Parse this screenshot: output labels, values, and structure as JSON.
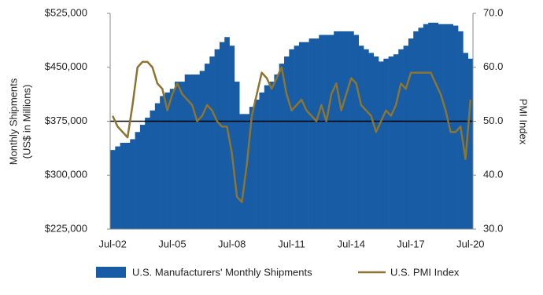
{
  "chart_data": {
    "type": "bar-line",
    "categories": [
      "Jul-02",
      null,
      null,
      null,
      null,
      null,
      null,
      null,
      null,
      null,
      null,
      null,
      "Jul-05",
      null,
      null,
      null,
      null,
      null,
      null,
      null,
      null,
      null,
      null,
      null,
      "Jul-08",
      null,
      null,
      null,
      null,
      null,
      null,
      null,
      null,
      null,
      null,
      null,
      "Jul-11",
      null,
      null,
      null,
      null,
      null,
      null,
      null,
      null,
      null,
      null,
      null,
      "Jul-14",
      null,
      null,
      null,
      null,
      null,
      null,
      null,
      null,
      null,
      null,
      null,
      "Jul-17",
      null,
      null,
      null,
      null,
      null,
      null,
      null,
      null,
      null,
      null,
      null,
      "Jul-20"
    ],
    "series": [
      {
        "name": "U.S. Manufacturers' Monthly Shipments",
        "type": "bar",
        "color": "#175ca4",
        "values": [
          335000,
          340000,
          345000,
          345000,
          350000,
          360000,
          370000,
          380000,
          390000,
          400000,
          410000,
          415000,
          420000,
          430000,
          430000,
          440000,
          440000,
          440000,
          445000,
          455000,
          465000,
          475000,
          485000,
          492000,
          480000,
          430000,
          385000,
          385000,
          395000,
          405000,
          415000,
          425000,
          430000,
          440000,
          455000,
          465000,
          475000,
          480000,
          485000,
          485000,
          490000,
          490000,
          495000,
          495000,
          495000,
          500000,
          500000,
          500000,
          500000,
          495000,
          480000,
          475000,
          470000,
          465000,
          458000,
          462000,
          465000,
          468000,
          475000,
          480000,
          490000,
          500000,
          505000,
          510000,
          512000,
          512000,
          510000,
          510000,
          510000,
          508000,
          500000,
          470000,
          462000
        ]
      },
      {
        "name": "U.S. PMI Index",
        "type": "line",
        "axis": "y2",
        "color": "#8c7431",
        "values": [
          51,
          49,
          48,
          47,
          53,
          60,
          61,
          61,
          60,
          57,
          56,
          52,
          55,
          57,
          55,
          54,
          53,
          50,
          51,
          53,
          52,
          50,
          49,
          49,
          44,
          36,
          35,
          42,
          51,
          55,
          59,
          58,
          56,
          58,
          60,
          55,
          52,
          53,
          54,
          52,
          51,
          50,
          53,
          50,
          55,
          57,
          52,
          55,
          58,
          57,
          53,
          52,
          51,
          48,
          50,
          52,
          51,
          53,
          57,
          56,
          59,
          59,
          59,
          59,
          59,
          57,
          55,
          52,
          48,
          48,
          49,
          43,
          54
        ]
      }
    ],
    "y_label": [
      "Monthly Shipments",
      "(US$ in Millions)"
    ],
    "y2_label": "PMI Index",
    "ylim": [
      225000,
      525000
    ],
    "yticks": [
      {
        "value": 225000,
        "label": "$225,000"
      },
      {
        "value": 300000,
        "label": "$300,000"
      },
      {
        "value": 375000,
        "label": "$375,000"
      },
      {
        "value": 450000,
        "label": "$450,000"
      },
      {
        "value": 525000,
        "label": "$525,000"
      }
    ],
    "y2lim": [
      30,
      70
    ],
    "y2ticks": [
      {
        "value": 30,
        "label": "30.0"
      },
      {
        "value": 40,
        "label": "40.0"
      },
      {
        "value": 50,
        "label": "50.0"
      },
      {
        "value": 60,
        "label": "60.0"
      },
      {
        "value": 70,
        "label": "70.0"
      }
    ],
    "reference_y": 375000,
    "legend": "bottom"
  }
}
